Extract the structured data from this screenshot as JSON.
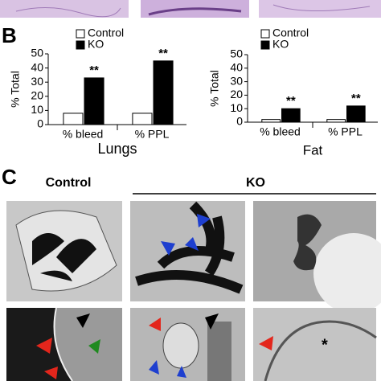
{
  "figure": {
    "panel_b": "B",
    "panel_c": "C",
    "control_label": "Control",
    "ko_label": "KO"
  },
  "chart_data": [
    {
      "type": "bar",
      "title": "Lungs",
      "y_label": "% Total",
      "categories": [
        "% bleed",
        "% PPL"
      ],
      "series": [
        {
          "name": "Control",
          "color": "#ffffff",
          "values": [
            8,
            8
          ]
        },
        {
          "name": "KO",
          "color": "#000000",
          "values": [
            33,
            45
          ]
        }
      ],
      "annotations": [
        "**",
        "**"
      ],
      "ylim": [
        0,
        50
      ],
      "yticks": [
        0,
        10,
        20,
        30,
        40,
        50
      ],
      "legend": "top"
    },
    {
      "type": "bar",
      "title": "Fat",
      "y_label": "% Total",
      "categories": [
        "% bleed",
        "% PPL"
      ],
      "series": [
        {
          "name": "Control",
          "color": "#ffffff",
          "values": [
            2,
            2
          ]
        },
        {
          "name": "KO",
          "color": "#000000",
          "values": [
            10,
            12
          ]
        }
      ],
      "annotations": [
        "**",
        "**"
      ],
      "ylim": [
        0,
        50
      ],
      "yticks": [
        0,
        10,
        20,
        30,
        40,
        50
      ],
      "legend": "top"
    }
  ]
}
